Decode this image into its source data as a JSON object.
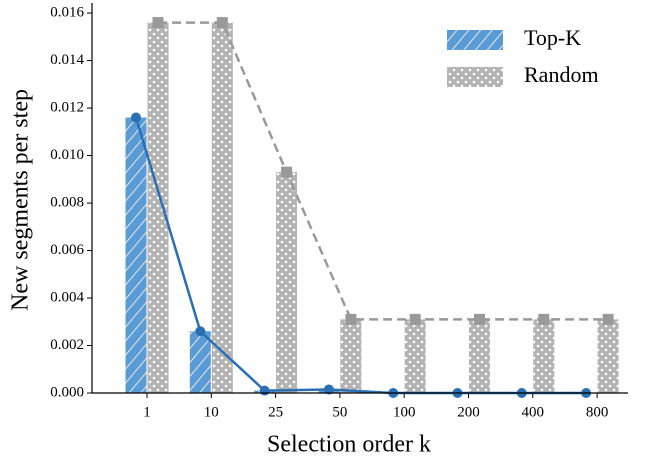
{
  "chart_data": {
    "type": "bar",
    "xlabel": "Selection order k",
    "ylabel": "New segments per step",
    "categories": [
      "1",
      "10",
      "25",
      "50",
      "100",
      "200",
      "400",
      "800"
    ],
    "series": [
      {
        "name": "Top-K",
        "color": "#5b9bd5",
        "line_color": "#2b6fb3",
        "values": [
          0.0116,
          0.0026,
          0.0001,
          0.00015,
          0.0,
          0.0,
          0.0,
          0.0
        ]
      },
      {
        "name": "Random",
        "color": "#b3b3b3",
        "line_color": "#999999",
        "values": [
          0.0156,
          0.0156,
          0.0093,
          0.0031,
          0.0031,
          0.0031,
          0.0031,
          0.0031
        ]
      }
    ],
    "ylim": [
      0,
      0.01634
    ],
    "yticks": [
      {
        "value": 0,
        "label": "0.000"
      },
      {
        "value": 0.002,
        "label": "0.002"
      },
      {
        "value": 0.004,
        "label": "0.004"
      },
      {
        "value": 0.006,
        "label": "0.006"
      },
      {
        "value": 0.008,
        "label": "0.008"
      },
      {
        "value": 0.01,
        "label": "0.010"
      },
      {
        "value": 0.012,
        "label": "0.012"
      },
      {
        "value": 0.014,
        "label": "0.014"
      },
      {
        "value": 0.016,
        "label": "0.016"
      }
    ],
    "legend": "upper right"
  }
}
